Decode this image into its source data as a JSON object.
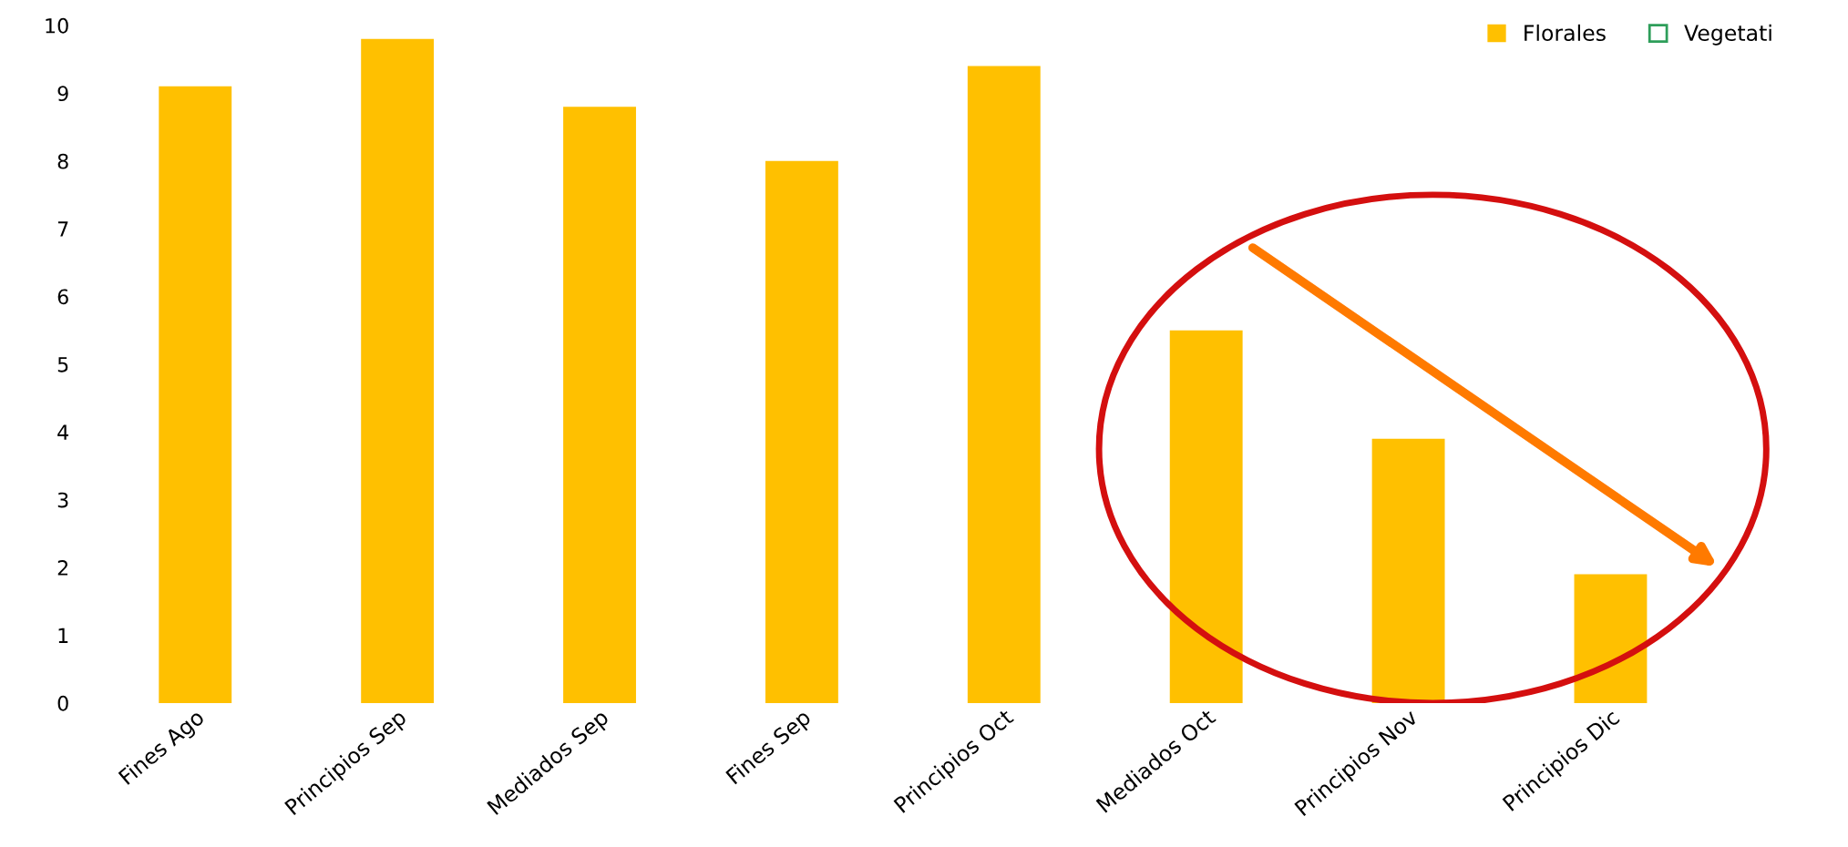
{
  "chart_data": {
    "type": "bar",
    "categories": [
      "Fines Ago",
      "Principios Sep",
      "Mediados Sep",
      "Fines Sep",
      "Principios Oct",
      "Mediados Oct",
      "Principios Nov",
      "Principios Dic"
    ],
    "series": [
      {
        "name": "Florales",
        "color": "#ffc000",
        "values": [
          9.1,
          9.8,
          8.8,
          8.0,
          9.4,
          5.5,
          3.9,
          1.9
        ]
      },
      {
        "name": "Vegetati",
        "color": "#2e9e5a",
        "values": [
          null,
          null,
          null,
          null,
          null,
          null,
          null,
          null
        ]
      }
    ],
    "ylim": [
      0,
      10
    ],
    "yticks": [
      0,
      1,
      2,
      3,
      4,
      5,
      6,
      7,
      8,
      9,
      10
    ],
    "grid": false,
    "legend": "top right"
  }
}
